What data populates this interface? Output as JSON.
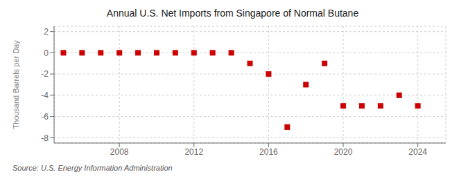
{
  "chart_data": {
    "type": "scatter",
    "title": "Annual U.S. Net Imports from Singapore of Normal Butane",
    "ylabel": "Thousand Barrels per Day",
    "annotations": [
      "Source: U.S. Energy Information Administration"
    ],
    "x": [
      2005,
      2006,
      2007,
      2008,
      2009,
      2010,
      2011,
      2012,
      2013,
      2014,
      2015,
      2016,
      2017,
      2018,
      2019,
      2020,
      2021,
      2022,
      2023,
      2024
    ],
    "values": [
      0,
      0,
      0,
      0,
      0,
      0,
      0,
      0,
      0,
      0,
      -1.0,
      -2.0,
      -7.0,
      -3.0,
      -1.0,
      -5.0,
      -5.0,
      -5.0,
      -4.0,
      -5.0
    ],
    "color": "#cc0000",
    "marker": "square",
    "xlim": [
      2004.5,
      2025.5
    ],
    "ylim": [
      -8.5,
      2.5
    ],
    "xticks": [
      2008,
      2012,
      2016,
      2020,
      2024
    ],
    "yticks": [
      -8,
      -6,
      -4,
      -2,
      0,
      2
    ],
    "grid": true
  }
}
